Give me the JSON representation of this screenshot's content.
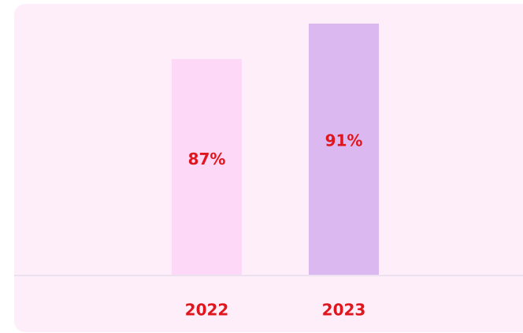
{
  "chart_data": {
    "type": "bar",
    "categories": [
      "2022",
      "2023"
    ],
    "values": [
      87,
      91
    ],
    "value_labels": [
      "87%",
      "91%"
    ],
    "colors": [
      "#fdd8f7",
      "#dcb8f0"
    ],
    "ylim": [
      62.6,
      91
    ]
  }
}
